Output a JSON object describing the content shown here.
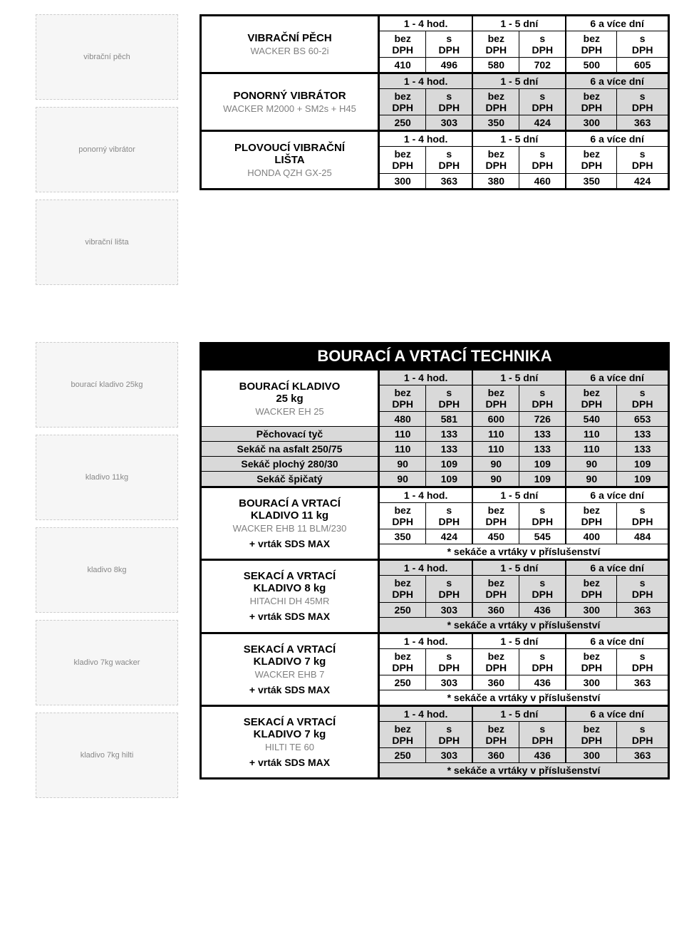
{
  "colors": {
    "bg_grey": "#d9d9d9",
    "black": "#000000",
    "model_grey": "#808080"
  },
  "periods": [
    "1 - 4 hod.",
    "1 - 5 dní",
    "6 a více dní"
  ],
  "sub": [
    "bez DPH",
    "s DPH"
  ],
  "section1": {
    "products": [
      {
        "title": "VIBRAČNÍ PĚCH",
        "model": "WACKER BS 60-2i",
        "prices": [
          410,
          496,
          580,
          702,
          500,
          605
        ],
        "shade": false
      },
      {
        "title": "PONORNÝ VIBRÁTOR",
        "model": "WACKER  M2000 + SM2s + H45",
        "prices": [
          250,
          303,
          350,
          424,
          300,
          363
        ],
        "shade": true
      },
      {
        "title": "PLOVOUCÍ VIBRAČNÍ",
        "title2": "LIŠTA",
        "model": "HONDA QZH GX-25",
        "prices": [
          300,
          363,
          380,
          460,
          350,
          424
        ],
        "shade": false
      }
    ]
  },
  "section2": {
    "heading": "BOURACÍ A VRTACÍ TECHNIKA",
    "products": [
      {
        "title": "BOURACÍ KLADIVO",
        "title2": "25 kg",
        "model": "WACKER EH 25",
        "prices": [
          480,
          581,
          600,
          726,
          540,
          653
        ],
        "shade": true,
        "accessories": [
          {
            "label": "Pěchovací tyč",
            "prices": [
              110,
              133,
              110,
              133,
              110,
              133
            ]
          },
          {
            "label": "Sekáč na asfalt 250/75",
            "prices": [
              110,
              133,
              110,
              133,
              110,
              133
            ]
          },
          {
            "label": "Sekáč plochý 280/30",
            "prices": [
              90,
              109,
              90,
              109,
              90,
              109
            ]
          },
          {
            "label": "Sekáč špičatý",
            "prices": [
              90,
              109,
              90,
              109,
              90,
              109
            ]
          }
        ]
      },
      {
        "title": "BOURACÍ A VRTACÍ",
        "title2": "KLADIVO 11 kg",
        "model": "WACKER EHB 11 BLM/230",
        "extra": "+ vrták SDS MAX",
        "prices": [
          350,
          424,
          450,
          545,
          400,
          484
        ],
        "note": "* sekáče a vrtáky v příslušenství",
        "shade": false
      },
      {
        "title": "SEKACÍ A VRTACÍ",
        "title2": "KLADIVO 8 kg",
        "model": "HITACHI DH 45MR",
        "extra": "+ vrták SDS MAX",
        "prices": [
          250,
          303,
          360,
          436,
          300,
          363
        ],
        "note": "* sekáče a vrtáky v příslušenství",
        "shade": true
      },
      {
        "title": "SEKACÍ A VRTACÍ",
        "title2": "KLADIVO 7 kg",
        "model": "WACKER EHB 7",
        "extra": "+ vrták SDS MAX",
        "prices": [
          250,
          303,
          360,
          436,
          300,
          363
        ],
        "note": "* sekáče a vrtáky v příslušenství",
        "shade": false
      },
      {
        "title": "SEKACÍ A VRTACÍ",
        "title2": "KLADIVO 7 kg",
        "model": "HILTI TE 60",
        "extra": "+ vrták SDS MAX",
        "prices": [
          250,
          303,
          360,
          436,
          300,
          363
        ],
        "note": "* sekáče a vrtáky v příslušenství",
        "shade": true
      }
    ]
  },
  "images": {
    "s1": [
      "vibrační pěch",
      "ponorný vibrátor",
      "vibrační lišta"
    ],
    "s2": [
      "bourací kladivo 25kg",
      "kladivo 11kg",
      "kladivo 8kg",
      "kladivo 7kg wacker",
      "kladivo 7kg hilti"
    ]
  }
}
